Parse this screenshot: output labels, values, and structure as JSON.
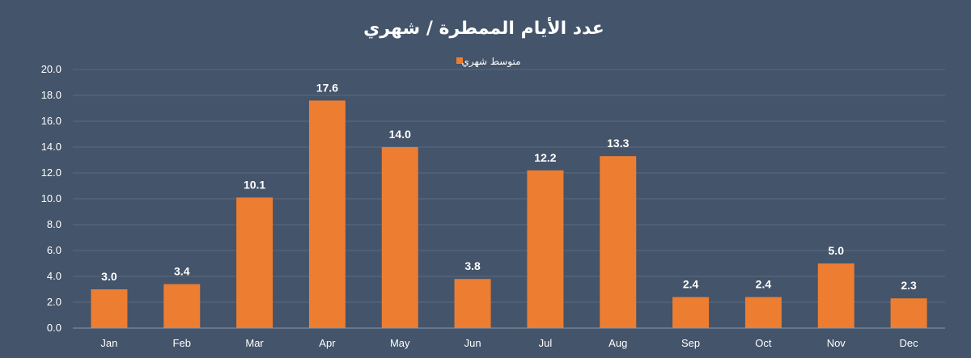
{
  "chart_data": {
    "type": "bar",
    "title": "عدد الأيام الممطرة / شهري",
    "legend": "متوسط شهري",
    "legend_position": "top-center",
    "categories": [
      "Jan",
      "Feb",
      "Mar",
      "Apr",
      "May",
      "Jun",
      "Jul",
      "Aug",
      "Sep",
      "Oct",
      "Nov",
      "Dec"
    ],
    "series": [
      {
        "name": "متوسط شهري",
        "values": [
          3.0,
          3.4,
          10.1,
          17.6,
          14.0,
          3.8,
          12.2,
          13.3,
          2.4,
          2.4,
          5.0,
          2.3
        ],
        "labels": [
          "3.0",
          "3.4",
          "10.1",
          "17.6",
          "14.0",
          "3.8",
          "12.2",
          "13.3",
          "2.4",
          "2.4",
          "5.0",
          "2.3"
        ]
      }
    ],
    "ylim": [
      0,
      20
    ],
    "yticks": [
      "0.0",
      "2.0",
      "4.0",
      "6.0",
      "8.0",
      "10.0",
      "12.0",
      "14.0",
      "16.0",
      "18.0",
      "20.0"
    ],
    "grid": true,
    "colors": {
      "background": "#44546a",
      "bar": "#ed7d31",
      "gridline": "#5a6a80",
      "text": "#ffffff"
    }
  }
}
